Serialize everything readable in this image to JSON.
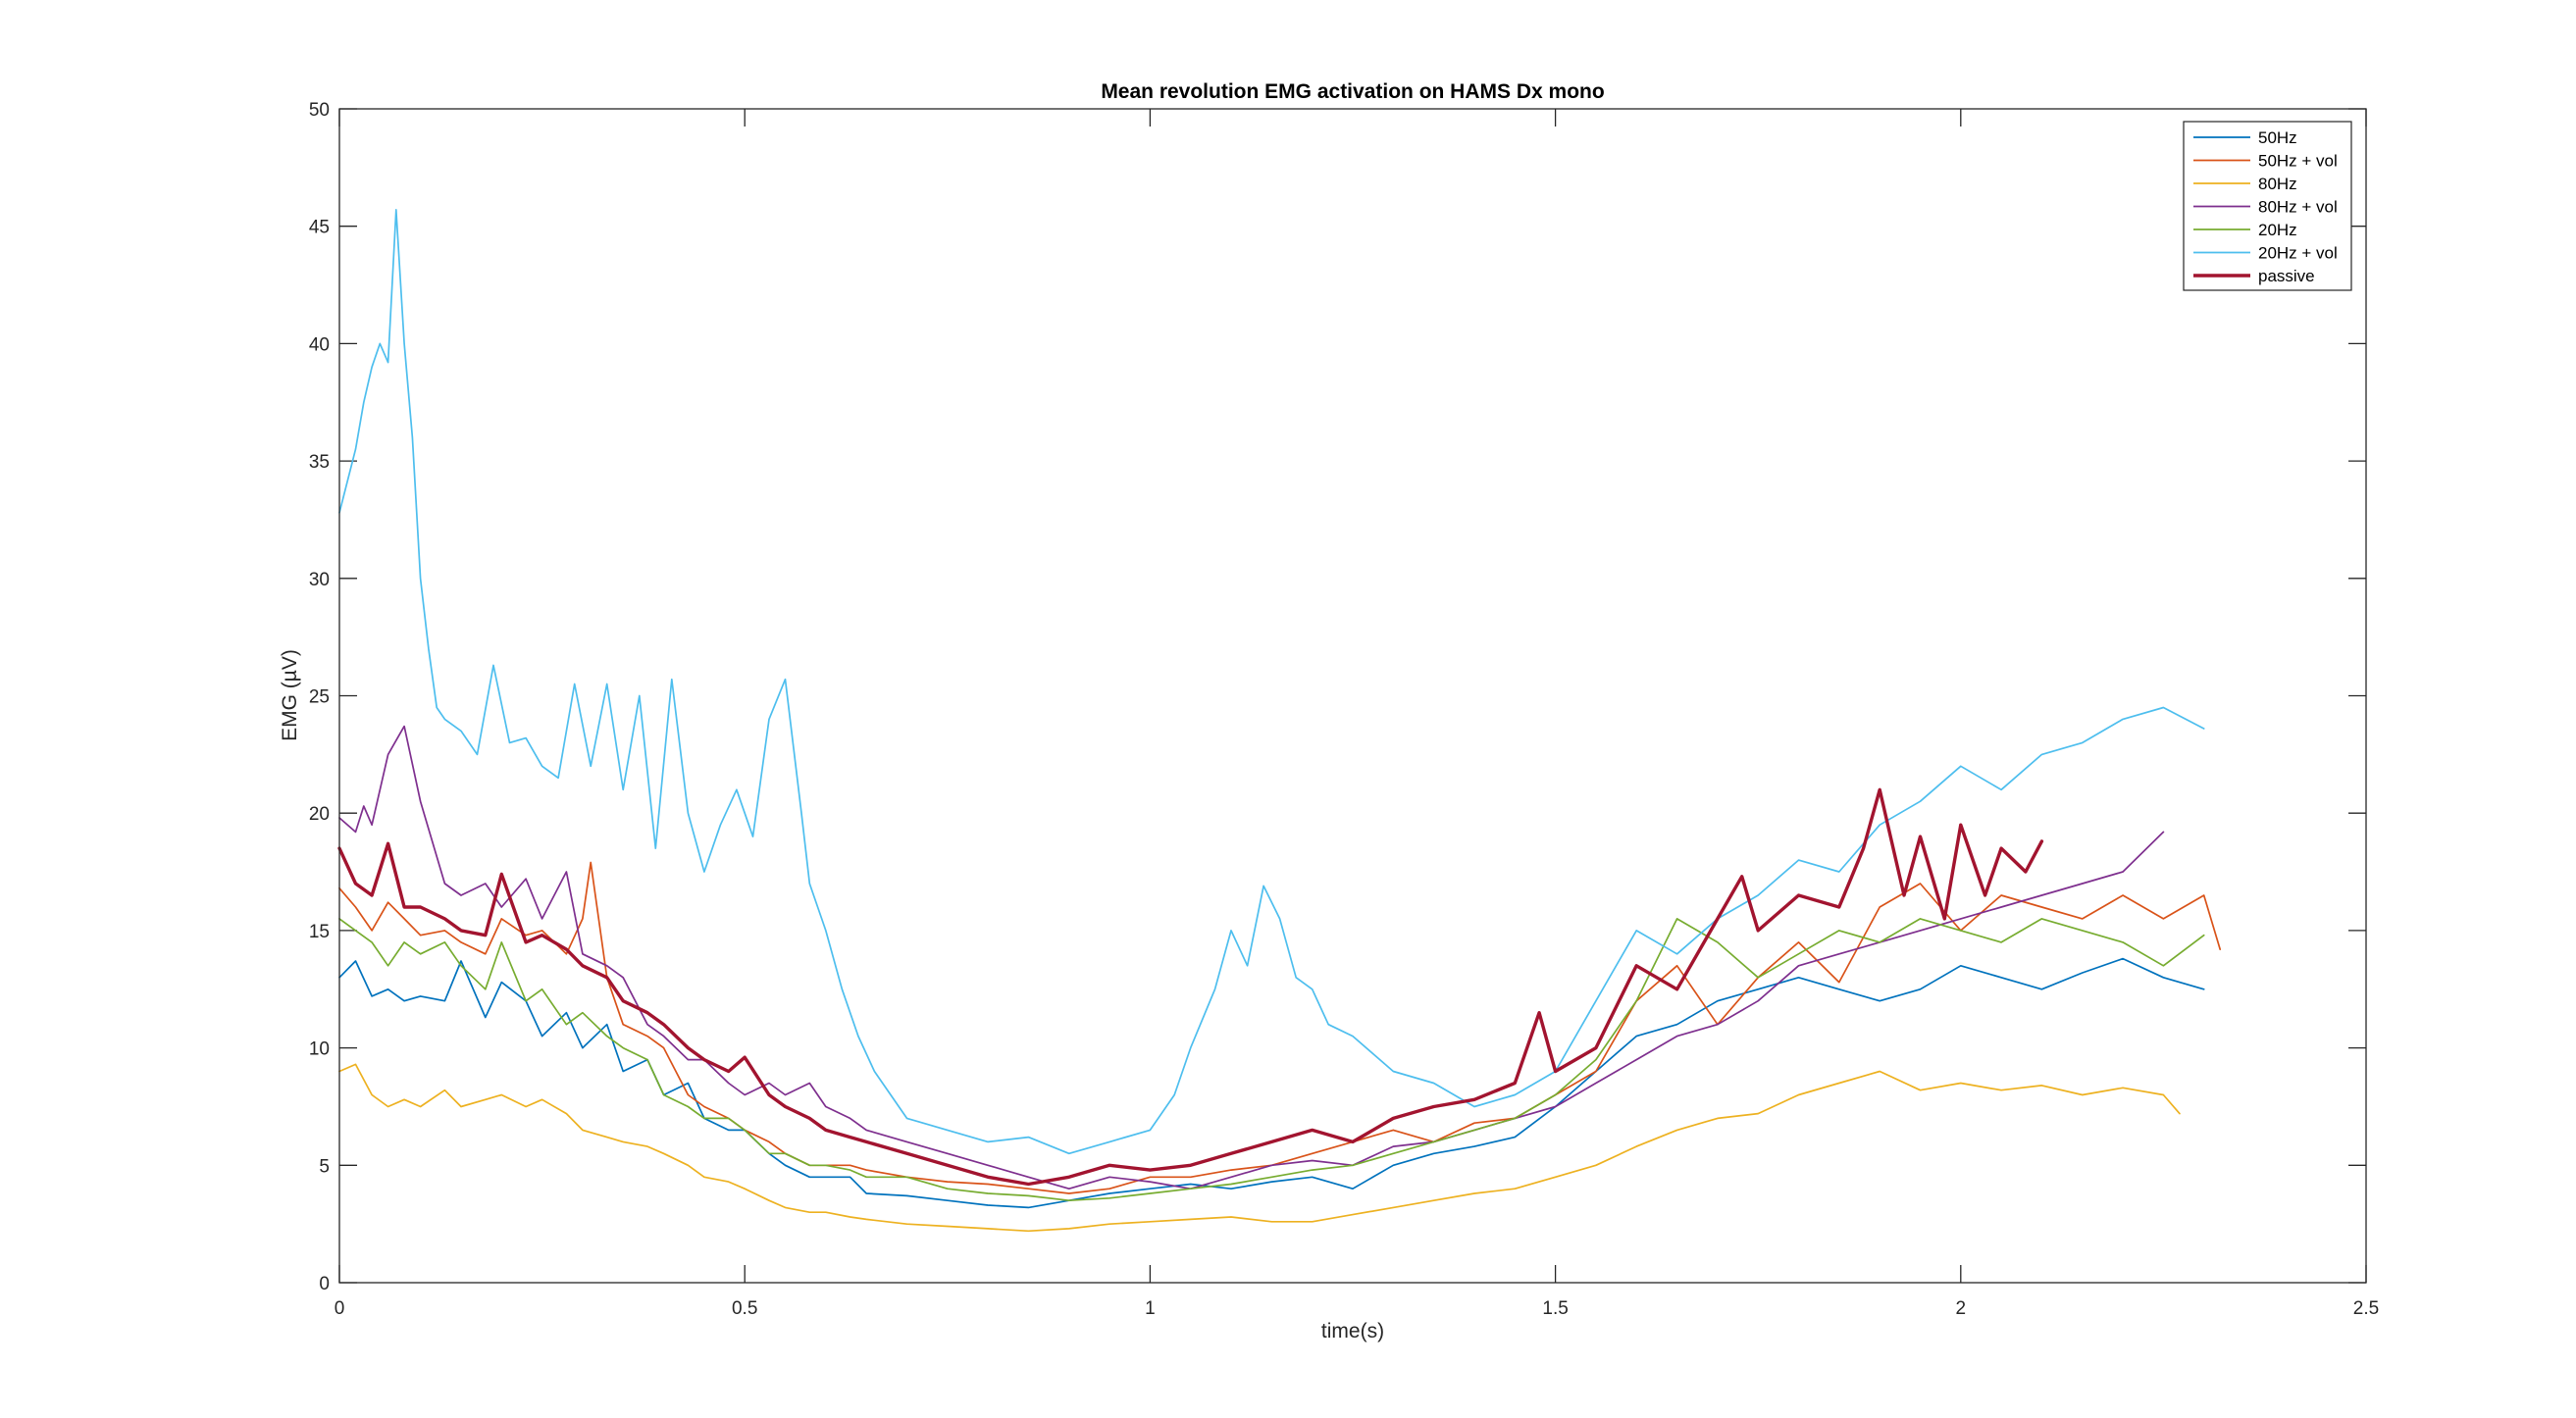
{
  "chart_data": {
    "type": "line",
    "title": "Mean revolution EMG activation on HAMS Dx mono",
    "xlabel": "time(s)",
    "ylabel": "EMG (µV)",
    "xlim": [
      0,
      2.5
    ],
    "ylim": [
      0,
      50
    ],
    "x_ticks": [
      0,
      0.5,
      1,
      1.5,
      2,
      2.5
    ],
    "x_tick_labels": [
      "0",
      "0.5",
      "1",
      "1.5",
      "2",
      "2.5"
    ],
    "y_ticks": [
      0,
      5,
      10,
      15,
      20,
      25,
      30,
      35,
      40,
      45,
      50
    ],
    "y_tick_labels": [
      "0",
      "5",
      "10",
      "15",
      "20",
      "25",
      "30",
      "35",
      "40",
      "45",
      "50"
    ],
    "grid": false,
    "legend_position": "top-right",
    "series": [
      {
        "name": "50Hz",
        "color": "#0072BD",
        "x": [
          0,
          0.02,
          0.04,
          0.06,
          0.08,
          0.1,
          0.13,
          0.15,
          0.18,
          0.2,
          0.23,
          0.25,
          0.28,
          0.3,
          0.33,
          0.35,
          0.38,
          0.4,
          0.43,
          0.45,
          0.48,
          0.5,
          0.53,
          0.55,
          0.58,
          0.6,
          0.63,
          0.65,
          0.7,
          0.75,
          0.8,
          0.85,
          0.9,
          0.95,
          1.0,
          1.05,
          1.1,
          1.15,
          1.2,
          1.25,
          1.3,
          1.35,
          1.4,
          1.45,
          1.5,
          1.55,
          1.6,
          1.65,
          1.7,
          1.75,
          1.8,
          1.85,
          1.9,
          1.95,
          2.0,
          2.05,
          2.1,
          2.15,
          2.2,
          2.25,
          2.3
        ],
        "values": [
          13.0,
          13.7,
          12.2,
          12.5,
          12.0,
          12.2,
          12.0,
          13.7,
          11.3,
          12.8,
          12.0,
          10.5,
          11.5,
          10.0,
          11.0,
          9.0,
          9.5,
          8.0,
          8.5,
          7.0,
          6.5,
          6.5,
          5.5,
          5.0,
          4.5,
          4.5,
          4.5,
          3.8,
          3.7,
          3.5,
          3.3,
          3.2,
          3.5,
          3.8,
          4.0,
          4.2,
          4.0,
          4.3,
          4.5,
          4.0,
          5.0,
          5.5,
          5.8,
          6.2,
          7.5,
          9.0,
          10.5,
          11.0,
          12.0,
          12.5,
          13.0,
          12.5,
          12.0,
          12.5,
          13.5,
          13.0,
          12.5,
          13.2,
          13.8,
          13.0,
          12.5
        ]
      },
      {
        "name": "50Hz + vol",
        "color": "#D95319",
        "x": [
          0,
          0.02,
          0.04,
          0.06,
          0.08,
          0.1,
          0.13,
          0.15,
          0.18,
          0.2,
          0.23,
          0.25,
          0.28,
          0.3,
          0.31,
          0.33,
          0.35,
          0.38,
          0.4,
          0.43,
          0.45,
          0.48,
          0.5,
          0.53,
          0.55,
          0.58,
          0.6,
          0.63,
          0.65,
          0.7,
          0.75,
          0.8,
          0.85,
          0.9,
          0.95,
          1.0,
          1.05,
          1.1,
          1.15,
          1.2,
          1.25,
          1.3,
          1.35,
          1.4,
          1.45,
          1.5,
          1.55,
          1.6,
          1.65,
          1.7,
          1.75,
          1.8,
          1.85,
          1.9,
          1.95,
          2.0,
          2.05,
          2.1,
          2.15,
          2.2,
          2.25,
          2.3,
          2.32
        ],
        "values": [
          16.8,
          16.0,
          15.0,
          16.2,
          15.5,
          14.8,
          15.0,
          14.5,
          14.0,
          15.5,
          14.8,
          15.0,
          14.0,
          15.5,
          17.9,
          13.0,
          11.0,
          10.5,
          10.0,
          8.0,
          7.5,
          7.0,
          6.5,
          6.0,
          5.5,
          5.0,
          5.0,
          5.0,
          4.8,
          4.5,
          4.3,
          4.2,
          4.0,
          3.8,
          4.0,
          4.5,
          4.5,
          4.8,
          5.0,
          5.5,
          6.0,
          6.5,
          6.0,
          6.8,
          7.0,
          8.0,
          9.0,
          12.0,
          13.5,
          11.0,
          13.0,
          14.5,
          12.8,
          16.0,
          17.0,
          15.0,
          16.5,
          16.0,
          15.5,
          16.5,
          15.5,
          16.5,
          14.2
        ]
      },
      {
        "name": "80Hz",
        "color": "#EDB120",
        "x": [
          0,
          0.02,
          0.04,
          0.06,
          0.08,
          0.1,
          0.13,
          0.15,
          0.18,
          0.2,
          0.23,
          0.25,
          0.28,
          0.3,
          0.33,
          0.35,
          0.38,
          0.4,
          0.43,
          0.45,
          0.48,
          0.5,
          0.53,
          0.55,
          0.58,
          0.6,
          0.63,
          0.65,
          0.7,
          0.75,
          0.8,
          0.85,
          0.9,
          0.95,
          1.0,
          1.05,
          1.1,
          1.15,
          1.2,
          1.25,
          1.3,
          1.35,
          1.4,
          1.45,
          1.5,
          1.55,
          1.6,
          1.65,
          1.7,
          1.75,
          1.8,
          1.85,
          1.9,
          1.95,
          2.0,
          2.05,
          2.1,
          2.15,
          2.2,
          2.25,
          2.27
        ],
        "values": [
          9.0,
          9.3,
          8.0,
          7.5,
          7.8,
          7.5,
          8.2,
          7.5,
          7.8,
          8.0,
          7.5,
          7.8,
          7.2,
          6.5,
          6.2,
          6.0,
          5.8,
          5.5,
          5.0,
          4.5,
          4.3,
          4.0,
          3.5,
          3.2,
          3.0,
          3.0,
          2.8,
          2.7,
          2.5,
          2.4,
          2.3,
          2.2,
          2.3,
          2.5,
          2.6,
          2.7,
          2.8,
          2.6,
          2.6,
          2.9,
          3.2,
          3.5,
          3.8,
          4.0,
          4.5,
          5.0,
          5.8,
          6.5,
          7.0,
          7.2,
          8.0,
          8.5,
          9.0,
          8.2,
          8.5,
          8.2,
          8.4,
          8.0,
          8.3,
          8.0,
          7.2
        ]
      },
      {
        "name": "80Hz + vol",
        "color": "#7E2F8E",
        "x": [
          0,
          0.02,
          0.03,
          0.04,
          0.06,
          0.08,
          0.1,
          0.13,
          0.15,
          0.18,
          0.2,
          0.23,
          0.25,
          0.28,
          0.3,
          0.33,
          0.35,
          0.38,
          0.4,
          0.43,
          0.45,
          0.48,
          0.5,
          0.53,
          0.55,
          0.58,
          0.6,
          0.63,
          0.65,
          0.7,
          0.75,
          0.8,
          0.85,
          0.9,
          0.95,
          1.0,
          1.05,
          1.1,
          1.15,
          1.2,
          1.25,
          1.3,
          1.35,
          1.4,
          1.45,
          1.5,
          1.55,
          1.6,
          1.65,
          1.7,
          1.75,
          1.8,
          1.85,
          1.9,
          1.95,
          2.0,
          2.05,
          2.1,
          2.15,
          2.2,
          2.25
        ],
        "values": [
          19.8,
          19.2,
          20.3,
          19.5,
          22.5,
          23.7,
          20.5,
          17.0,
          16.5,
          17.0,
          16.0,
          17.2,
          15.5,
          17.5,
          14.0,
          13.5,
          13.0,
          11.0,
          10.5,
          9.5,
          9.5,
          8.5,
          8.0,
          8.5,
          8.0,
          8.5,
          7.5,
          7.0,
          6.5,
          6.0,
          5.5,
          5.0,
          4.5,
          4.0,
          4.5,
          4.3,
          4.0,
          4.5,
          5.0,
          5.2,
          5.0,
          5.8,
          6.0,
          6.5,
          7.0,
          7.5,
          8.5,
          9.5,
          10.5,
          11.0,
          12.0,
          13.5,
          14.0,
          14.5,
          15.0,
          15.5,
          16.0,
          16.5,
          17.0,
          17.5,
          19.2
        ]
      },
      {
        "name": "20Hz",
        "color": "#77AC30",
        "x": [
          0,
          0.02,
          0.04,
          0.06,
          0.08,
          0.1,
          0.13,
          0.15,
          0.18,
          0.2,
          0.23,
          0.25,
          0.28,
          0.3,
          0.33,
          0.35,
          0.38,
          0.4,
          0.43,
          0.45,
          0.48,
          0.5,
          0.53,
          0.55,
          0.58,
          0.6,
          0.63,
          0.65,
          0.7,
          0.75,
          0.8,
          0.85,
          0.9,
          0.95,
          1.0,
          1.05,
          1.1,
          1.15,
          1.2,
          1.25,
          1.3,
          1.35,
          1.4,
          1.45,
          1.5,
          1.55,
          1.6,
          1.65,
          1.7,
          1.75,
          1.8,
          1.85,
          1.9,
          1.95,
          2.0,
          2.05,
          2.1,
          2.15,
          2.2,
          2.25,
          2.3
        ],
        "values": [
          15.5,
          15.0,
          14.5,
          13.5,
          14.5,
          14.0,
          14.5,
          13.5,
          12.5,
          14.5,
          12.0,
          12.5,
          11.0,
          11.5,
          10.5,
          10.0,
          9.5,
          8.0,
          7.5,
          7.0,
          7.0,
          6.5,
          5.5,
          5.5,
          5.0,
          5.0,
          4.8,
          4.5,
          4.5,
          4.0,
          3.8,
          3.7,
          3.5,
          3.6,
          3.8,
          4.0,
          4.2,
          4.5,
          4.8,
          5.0,
          5.5,
          6.0,
          6.5,
          7.0,
          8.0,
          9.5,
          12.0,
          15.5,
          14.5,
          13.0,
          14.0,
          15.0,
          14.5,
          15.5,
          15.0,
          14.5,
          15.5,
          15.0,
          14.5,
          13.5,
          14.8
        ]
      },
      {
        "name": "20Hz + vol",
        "color": "#4DBEEE",
        "x": [
          0,
          0.02,
          0.03,
          0.04,
          0.05,
          0.06,
          0.07,
          0.08,
          0.09,
          0.1,
          0.11,
          0.12,
          0.13,
          0.15,
          0.17,
          0.19,
          0.21,
          0.23,
          0.25,
          0.27,
          0.29,
          0.31,
          0.33,
          0.35,
          0.37,
          0.39,
          0.41,
          0.43,
          0.45,
          0.47,
          0.49,
          0.51,
          0.53,
          0.55,
          0.57,
          0.58,
          0.6,
          0.62,
          0.64,
          0.66,
          0.7,
          0.75,
          0.8,
          0.85,
          0.9,
          0.95,
          1.0,
          1.03,
          1.05,
          1.08,
          1.1,
          1.12,
          1.14,
          1.16,
          1.18,
          1.2,
          1.22,
          1.25,
          1.3,
          1.35,
          1.4,
          1.45,
          1.5,
          1.55,
          1.6,
          1.65,
          1.7,
          1.75,
          1.8,
          1.85,
          1.9,
          1.95,
          2.0,
          2.05,
          2.1,
          2.15,
          2.2,
          2.25,
          2.3
        ],
        "values": [
          32.8,
          35.5,
          37.5,
          39.0,
          40.0,
          39.2,
          45.7,
          40.0,
          36.0,
          30.0,
          27.0,
          24.5,
          24.0,
          23.5,
          22.5,
          26.3,
          23.0,
          23.2,
          22.0,
          21.5,
          25.5,
          22.0,
          25.5,
          21.0,
          25.0,
          18.5,
          25.7,
          20.0,
          17.5,
          19.5,
          21.0,
          19.0,
          24.0,
          25.7,
          20.0,
          17.0,
          15.0,
          12.5,
          10.5,
          9.0,
          7.0,
          6.5,
          6.0,
          6.2,
          5.5,
          6.0,
          6.5,
          8.0,
          10.0,
          12.5,
          15.0,
          13.5,
          16.9,
          15.5,
          13.0,
          12.5,
          11.0,
          10.5,
          9.0,
          8.5,
          7.5,
          8.0,
          9.0,
          12.0,
          15.0,
          14.0,
          15.5,
          16.5,
          18.0,
          17.5,
          19.5,
          20.5,
          22.0,
          21.0,
          22.5,
          23.0,
          24.0,
          24.5,
          23.6
        ]
      },
      {
        "name": "passive",
        "color": "#A2142F",
        "x": [
          0,
          0.02,
          0.04,
          0.06,
          0.08,
          0.1,
          0.13,
          0.15,
          0.18,
          0.2,
          0.23,
          0.25,
          0.28,
          0.3,
          0.33,
          0.35,
          0.38,
          0.4,
          0.43,
          0.45,
          0.48,
          0.5,
          0.53,
          0.55,
          0.58,
          0.6,
          0.63,
          0.65,
          0.7,
          0.75,
          0.8,
          0.85,
          0.9,
          0.95,
          1.0,
          1.05,
          1.1,
          1.15,
          1.2,
          1.25,
          1.3,
          1.35,
          1.4,
          1.45,
          1.48,
          1.5,
          1.55,
          1.6,
          1.65,
          1.7,
          1.73,
          1.75,
          1.8,
          1.85,
          1.88,
          1.9,
          1.93,
          1.95,
          1.98,
          2.0,
          2.03,
          2.05,
          2.08,
          2.1
        ],
        "values": [
          18.5,
          17.0,
          16.5,
          18.7,
          16.0,
          16.0,
          15.5,
          15.0,
          14.8,
          17.4,
          14.5,
          14.8,
          14.2,
          13.5,
          13.0,
          12.0,
          11.5,
          11.0,
          10.0,
          9.5,
          9.0,
          9.6,
          8.0,
          7.5,
          7.0,
          6.5,
          6.2,
          6.0,
          5.5,
          5.0,
          4.5,
          4.2,
          4.5,
          5.0,
          4.8,
          5.0,
          5.5,
          6.0,
          6.5,
          6.0,
          7.0,
          7.5,
          7.8,
          8.5,
          11.5,
          9.0,
          10.0,
          13.5,
          12.5,
          15.5,
          17.3,
          15.0,
          16.5,
          16.0,
          18.5,
          21.0,
          16.5,
          19.0,
          15.5,
          19.5,
          16.5,
          18.5,
          17.5,
          18.8
        ]
      }
    ]
  }
}
